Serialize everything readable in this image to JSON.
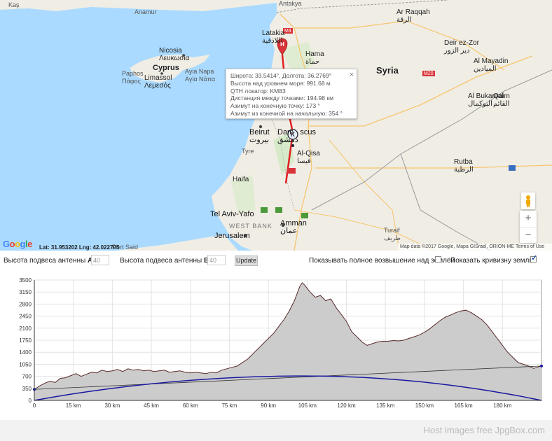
{
  "map": {
    "labels": {
      "kas": "Kaş",
      "anamur": "Anamur",
      "antakya": "Antakya",
      "latakia": "Latakia\nاللاذقية",
      "m4": "M4",
      "hama": "Hama\nحماة",
      "ar_raqqah": "Ar Raqqah\nالرقة",
      "deir_ez_zor": "Deir ez-Zor\nدير الزور",
      "al_mayadin": "Al Mayadin\nالميادين",
      "syria": "Syria",
      "m20": "M20",
      "al_bukamal": "Al Bukamal\nالبوكمال",
      "qaim": "Qaim\nالقائم",
      "nicosia": "Nicosia\nΛευκωσία",
      "cyprus": "Cyprus",
      "limassol": "Limassol\nΛεμεσός",
      "paphos": "Paphos\nΠάφος",
      "ayia_napa": "Ayia Napa\nΑγία Νάπα",
      "beirut": "Beirut\nبيروت",
      "damascus": "Dam   scus\nدمشق",
      "al_qisa": "Al-Qisa\nقيسا",
      "tyre": "Tyre",
      "haifa": "Haifa",
      "rutba": "Rutba\nالرطبة",
      "tel_aviv": "Tel Aviv-Yafo",
      "west_bank": "WEST BANK",
      "amman": "Amman\nعمان",
      "jerusalem": "Jerusalem",
      "port_said": "Port Said",
      "turaif": "Turaif\nطريف"
    },
    "markers": {
      "start": "H",
      "end": "K"
    },
    "popup": {
      "lines": [
        "Широта: 33.5414°, Долгота: 36.2769°",
        "Высота над уровнем моря: 991.68 м",
        "QTH локатор: KM83",
        "Дистанция между точками: 194.98 км",
        "Азимут на конечную точку: 173 °",
        "Азимут из конечной на начальную: 354 °"
      ],
      "close": "×"
    },
    "zoom_in": "+",
    "zoom_out": "−",
    "google_logo": "Google",
    "latlng": "Lat: 31.953202 Lng: 42.022705",
    "attribution": "Map data ©2017 Google, Mapa GISrael, ORION-ME   Terms of Use"
  },
  "controls": {
    "height_a_label": "Высота подвеса антенны",
    "height_a_letter": "A:",
    "height_a_value": "40",
    "height_b_label": "Высота подвеса антенны",
    "height_b_letter": "B:",
    "height_b_value": "40",
    "update": "Update",
    "show_full_label": "Показывать полное возвышение над землёй",
    "show_full_checked": false,
    "show_curv_label": "Показать кривизну земли",
    "show_curv_checked": true
  },
  "chart_data": {
    "type": "area",
    "title": "",
    "xlabel": "",
    "ylabel": "",
    "xlim": [
      0,
      195
    ],
    "ylim": [
      0,
      3500
    ],
    "x_ticks": [
      15,
      30,
      45,
      60,
      75,
      90,
      105,
      120,
      135,
      150,
      165,
      180
    ],
    "x_tick_suffix": " km",
    "y_ticks": [
      0,
      350,
      700,
      1050,
      1400,
      1750,
      2100,
      2450,
      2800,
      3150,
      3500
    ],
    "grid": true,
    "terrain": {
      "x": [
        0,
        2,
        4,
        6,
        8,
        10,
        12,
        14,
        16,
        18,
        20,
        22,
        24,
        26,
        28,
        30,
        32,
        34,
        36,
        38,
        40,
        42,
        44,
        46,
        48,
        50,
        52,
        54,
        56,
        58,
        60,
        62,
        64,
        66,
        68,
        70,
        72,
        74,
        76,
        78,
        80,
        82,
        84,
        86,
        88,
        90,
        92,
        94,
        96,
        98,
        100,
        101,
        102,
        103,
        104,
        105,
        106,
        108,
        110,
        112,
        114,
        116,
        118,
        120,
        122,
        124,
        126,
        128,
        130,
        132,
        134,
        136,
        138,
        140,
        142,
        144,
        146,
        148,
        150,
        152,
        154,
        156,
        158,
        160,
        162,
        164,
        166,
        168,
        170,
        172,
        174,
        176,
        178,
        180,
        182,
        184,
        186,
        188,
        190,
        192,
        194,
        195
      ],
      "y": [
        320,
        420,
        500,
        560,
        520,
        640,
        660,
        720,
        780,
        700,
        760,
        820,
        800,
        880,
        840,
        860,
        900,
        840,
        920,
        880,
        900,
        860,
        880,
        840,
        860,
        880,
        820,
        840,
        860,
        820,
        800,
        820,
        800,
        780,
        820,
        800,
        880,
        920,
        960,
        1000,
        1100,
        1200,
        1350,
        1500,
        1650,
        1800,
        1950,
        2150,
        2350,
        2600,
        2900,
        3100,
        3300,
        3420,
        3350,
        3250,
        3150,
        3000,
        3050,
        2900,
        2950,
        2700,
        2500,
        2300,
        2000,
        1850,
        1700,
        1600,
        1650,
        1700,
        1720,
        1720,
        1740,
        1730,
        1750,
        1800,
        1850,
        1900,
        1980,
        2080,
        2200,
        2320,
        2420,
        2480,
        2550,
        2600,
        2620,
        2550,
        2450,
        2350,
        2200,
        2000,
        1800,
        1600,
        1400,
        1250,
        1100,
        1050,
        1000,
        930,
        980,
        1000
      ]
    },
    "los_line": {
      "x": [
        0,
        195
      ],
      "y": [
        320,
        1000
      ]
    },
    "curvature": {
      "x": [
        0,
        195
      ],
      "peak_x": 104,
      "peak_y": 710,
      "end_y": 0
    }
  },
  "colors": {
    "terrain_fill": "#cccccc",
    "terrain_line": "#5a2a2a",
    "curvature": "#1a1aa0",
    "los": "#333333",
    "marker_red": "#d9343a",
    "path_red": "#e02020"
  },
  "footer": "Host images free JpgBox.com"
}
